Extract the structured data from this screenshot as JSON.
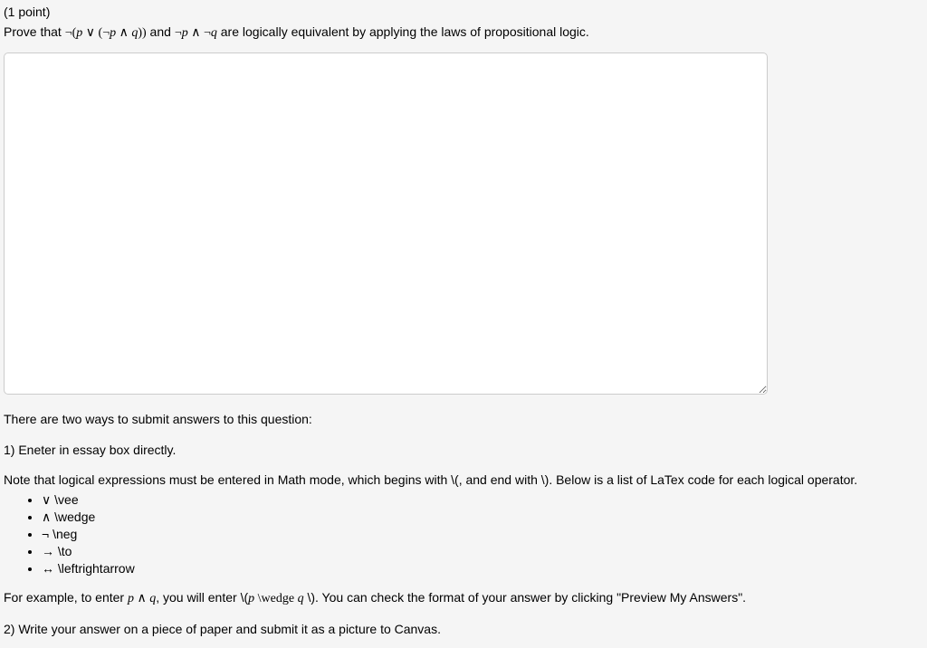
{
  "points_label": "(1 point)",
  "prompt_prefix": "Prove that ",
  "prompt_mid": " and ",
  "prompt_suffix": " are logically equivalent by applying the laws of propositional logic.",
  "expr1_neg": "¬(",
  "expr1_p": "p",
  "expr1_or": " ∨ (",
  "expr1_neg2": "¬",
  "expr1_p2": "p",
  "expr1_and": " ∧ ",
  "expr1_q": "q",
  "expr1_close": "))",
  "expr2_neg": "¬",
  "expr2_p": "p",
  "expr2_and": " ∧ ",
  "expr2_neg2": "¬",
  "expr2_q": "q",
  "essay_value": "",
  "intro_line": "There are two ways to submit answers to this question:",
  "method1": "1) Eneter in essay box directly.",
  "note_line": "Note that logical expressions must be entered in Math mode, which begins with \\(, and end with \\). Below is a list of LaTex code for each logical operator.",
  "ops": [
    {
      "sym": "∨",
      "code": " \\vee"
    },
    {
      "sym": "∧",
      "code": " \\wedge"
    },
    {
      "sym": "¬",
      "code": " \\neg"
    },
    {
      "sym": "→",
      "code": " \\to"
    },
    {
      "sym": "↔",
      "code": " \\leftrightarrow"
    }
  ],
  "example_prefix": "For example, to enter ",
  "example_p": "p",
  "example_and": " ∧ ",
  "example_q": "q",
  "example_mid": ", you will enter \\(",
  "example_p2": "p",
  "example_wedge": " \\wedge ",
  "example_q2": "q",
  "example_close": " \\)",
  "example_suffix": ". You can check the format of your answer by clicking \"Preview My Answers\".",
  "method2": "2) Write your answer on a piece of paper and submit it as a picture to Canvas."
}
